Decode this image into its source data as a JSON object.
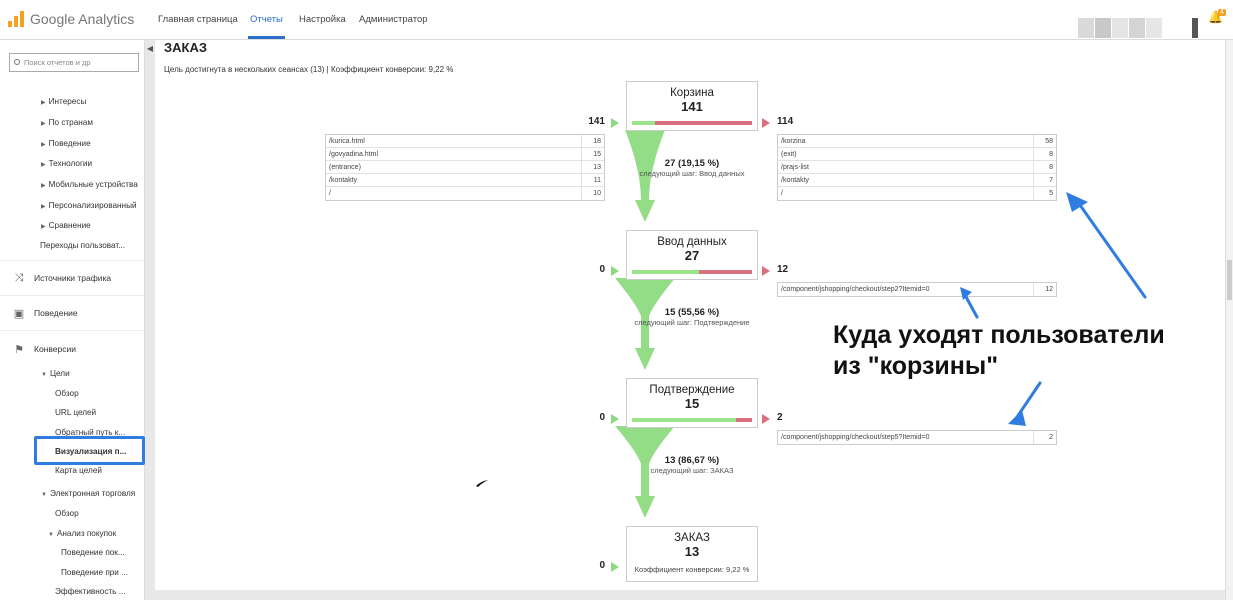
{
  "header": {
    "logo_text": "Google Analytics",
    "nav": [
      "Главная страница",
      "Отчеты",
      "Настройка",
      "Администратор"
    ],
    "active_nav": "Отчеты",
    "notification_count": "4"
  },
  "sidebar": {
    "search_placeholder": "Поиск отчетов и др",
    "items": [
      {
        "label": "Интересы"
      },
      {
        "label": "По странам"
      },
      {
        "label": "Поведение"
      },
      {
        "label": "Технологии"
      },
      {
        "label": "Мобильные устройства"
      },
      {
        "label": "Персонализированный"
      },
      {
        "label": "Сравнение"
      },
      {
        "label": "Переходы пользоват..."
      }
    ],
    "sections": [
      {
        "label": "Источники трафика",
        "icon": "traffic-sources-icon"
      },
      {
        "label": "Поведение",
        "icon": "behavior-icon"
      },
      {
        "label": "Конверсии",
        "icon": "flag-icon"
      }
    ],
    "goals": {
      "label": "Цели",
      "items": [
        "Обзор",
        "URL целей",
        "Обратный путь к...",
        "Визуализация п...",
        "Карта целей"
      ]
    },
    "ecommerce": {
      "label": "Электронная торговля",
      "overview": "Обзор",
      "shopping": "Анализ покупок",
      "items": [
        "Поведение пок...",
        "Поведение при ...",
        "Эффективность ..."
      ]
    }
  },
  "report": {
    "title": "ЗАКАЗ",
    "summary": "Цель достигнута в нескольких сеансах (13) | Коэффициент конверсии: 9,22 %"
  },
  "funnel": {
    "steps": [
      {
        "name": "Корзина",
        "count": "141",
        "entrances": "141",
        "exits": "114",
        "green_share": 0.19,
        "red_share": 0.81,
        "entrance_pages": [
          [
            "/kurica.html",
            "18"
          ],
          [
            "/govyadina.html",
            "15"
          ],
          [
            "(entrance)",
            "13"
          ],
          [
            "/kontakty",
            "11"
          ],
          [
            "/",
            "10"
          ]
        ],
        "exit_pages": [
          [
            "/korzina",
            "58"
          ],
          [
            "(exit)",
            "8"
          ],
          [
            "/prajs-list",
            "8"
          ],
          [
            "/kontakty",
            "7"
          ],
          [
            "/",
            "5"
          ]
        ],
        "next_percent": "27 (19,15 %)",
        "next_label": "следующий шаг: Ввод данных"
      },
      {
        "name": "Ввод данных",
        "count": "27",
        "entrances": "0",
        "exits": "12",
        "green_share": 0.56,
        "red_share": 0.44,
        "exit_pages": [
          [
            "/component/jshopping/checkout/step2?Itemid=0",
            "12"
          ]
        ],
        "next_percent": "15 (55,56 %)",
        "next_label": "следующий шаг: Подтверждение"
      },
      {
        "name": "Подтверждение",
        "count": "15",
        "entrances": "0",
        "exits": "2",
        "green_share": 0.87,
        "red_share": 0.13,
        "exit_pages": [
          [
            "/component/jshopping/checkout/step5?Itemid=0",
            "2"
          ]
        ],
        "next_percent": "13 (86,67 %)",
        "next_label": "следующий шаг: ЗАКАЗ"
      },
      {
        "name": "ЗАКАЗ",
        "count": "13",
        "entrances": "0",
        "conversion": "Коэффициент конверсии: 9,22 %"
      }
    ]
  },
  "annotation": {
    "line1": "Куда уходят пользователи",
    "line2": "из \"корзины\""
  },
  "colors": {
    "accent": "#2a6fc9",
    "highlight": "#2f7de1",
    "funnel_green": "#8ed883",
    "exit_red": "#d9707f",
    "annotation_arrow": "#2f7de1"
  }
}
